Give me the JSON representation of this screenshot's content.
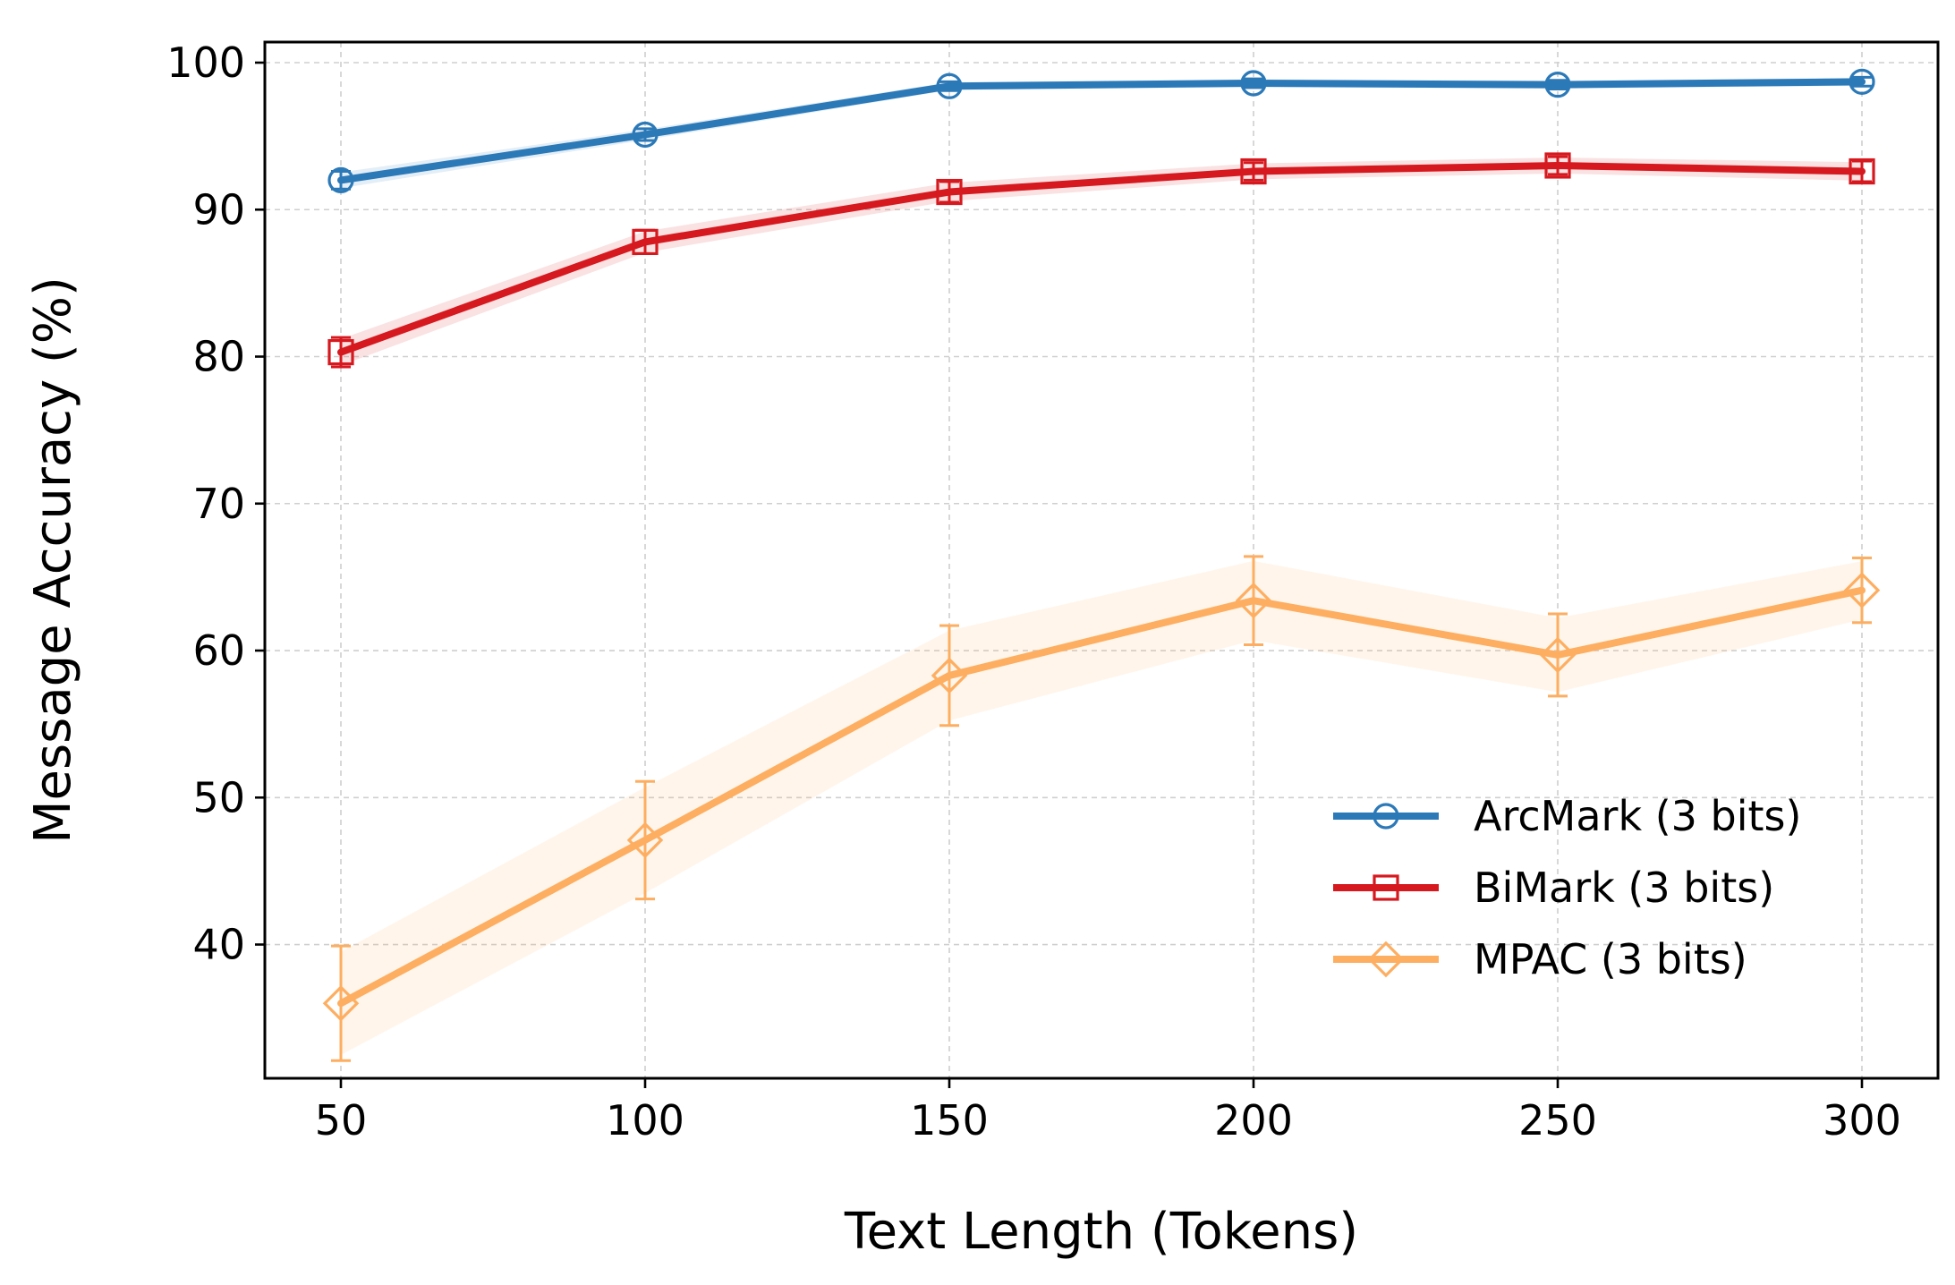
{
  "chart_data": {
    "type": "line",
    "title": "",
    "xlabel": "Text Length (Tokens)",
    "ylabel": "Message Accuracy (%)",
    "x": [
      50,
      100,
      150,
      200,
      250,
      300
    ],
    "xlim": [
      37.5,
      312.5
    ],
    "ylim": [
      30.9,
      101.4
    ],
    "xticks": [
      50,
      100,
      150,
      200,
      250,
      300
    ],
    "yticks": [
      40,
      50,
      60,
      70,
      80,
      90,
      100
    ],
    "grid": true,
    "legend_position": "bottom-right",
    "series": [
      {
        "name": "ArcMark (3 bits)",
        "color": "#2c79b8",
        "marker": "circle",
        "values": [
          92.0,
          95.1,
          98.4,
          98.6,
          98.5,
          98.7
        ],
        "errors": [
          0.6,
          0.4,
          0.3,
          0.3,
          0.3,
          0.3
        ]
      },
      {
        "name": "BiMark (3 bits)",
        "color": "#d6191f",
        "marker": "square",
        "values": [
          80.3,
          87.8,
          91.2,
          92.6,
          93.0,
          92.6
        ],
        "errors": [
          1.0,
          0.8,
          0.7,
          0.6,
          0.6,
          0.7
        ]
      },
      {
        "name": "MPAC (3 bits)",
        "color": "#fdae61",
        "marker": "diamond",
        "values": [
          36.0,
          47.1,
          58.3,
          63.4,
          59.7,
          64.1
        ],
        "errors": [
          3.9,
          4.0,
          3.4,
          3.0,
          2.8,
          2.2
        ]
      }
    ]
  }
}
